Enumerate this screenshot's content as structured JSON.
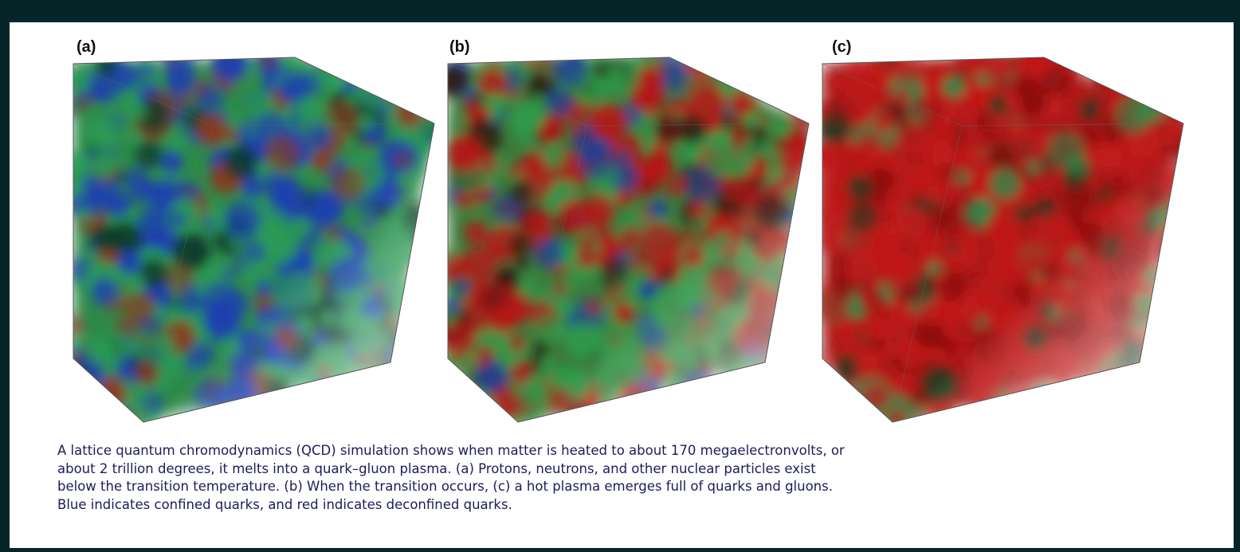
{
  "figure": {
    "panels": [
      {
        "label": "(a)"
      },
      {
        "label": "(b)"
      },
      {
        "label": "(c)"
      }
    ],
    "caption_lines": [
      "A lattice quantum chromodynamics (QCD) simulation shows when matter is heated to about 170 megaelectronvolts, or",
      "about 2 trillion degrees, it melts into a quark–gluon plasma. (a) Protons, neutrons, and other nuclear particles exist",
      "below the transition temperature. (b) When the transition occurs, (c) a hot plasma emerges full of quarks and gluons.",
      "Blue indicates confined quarks, and red indicates deconfined quarks."
    ]
  }
}
